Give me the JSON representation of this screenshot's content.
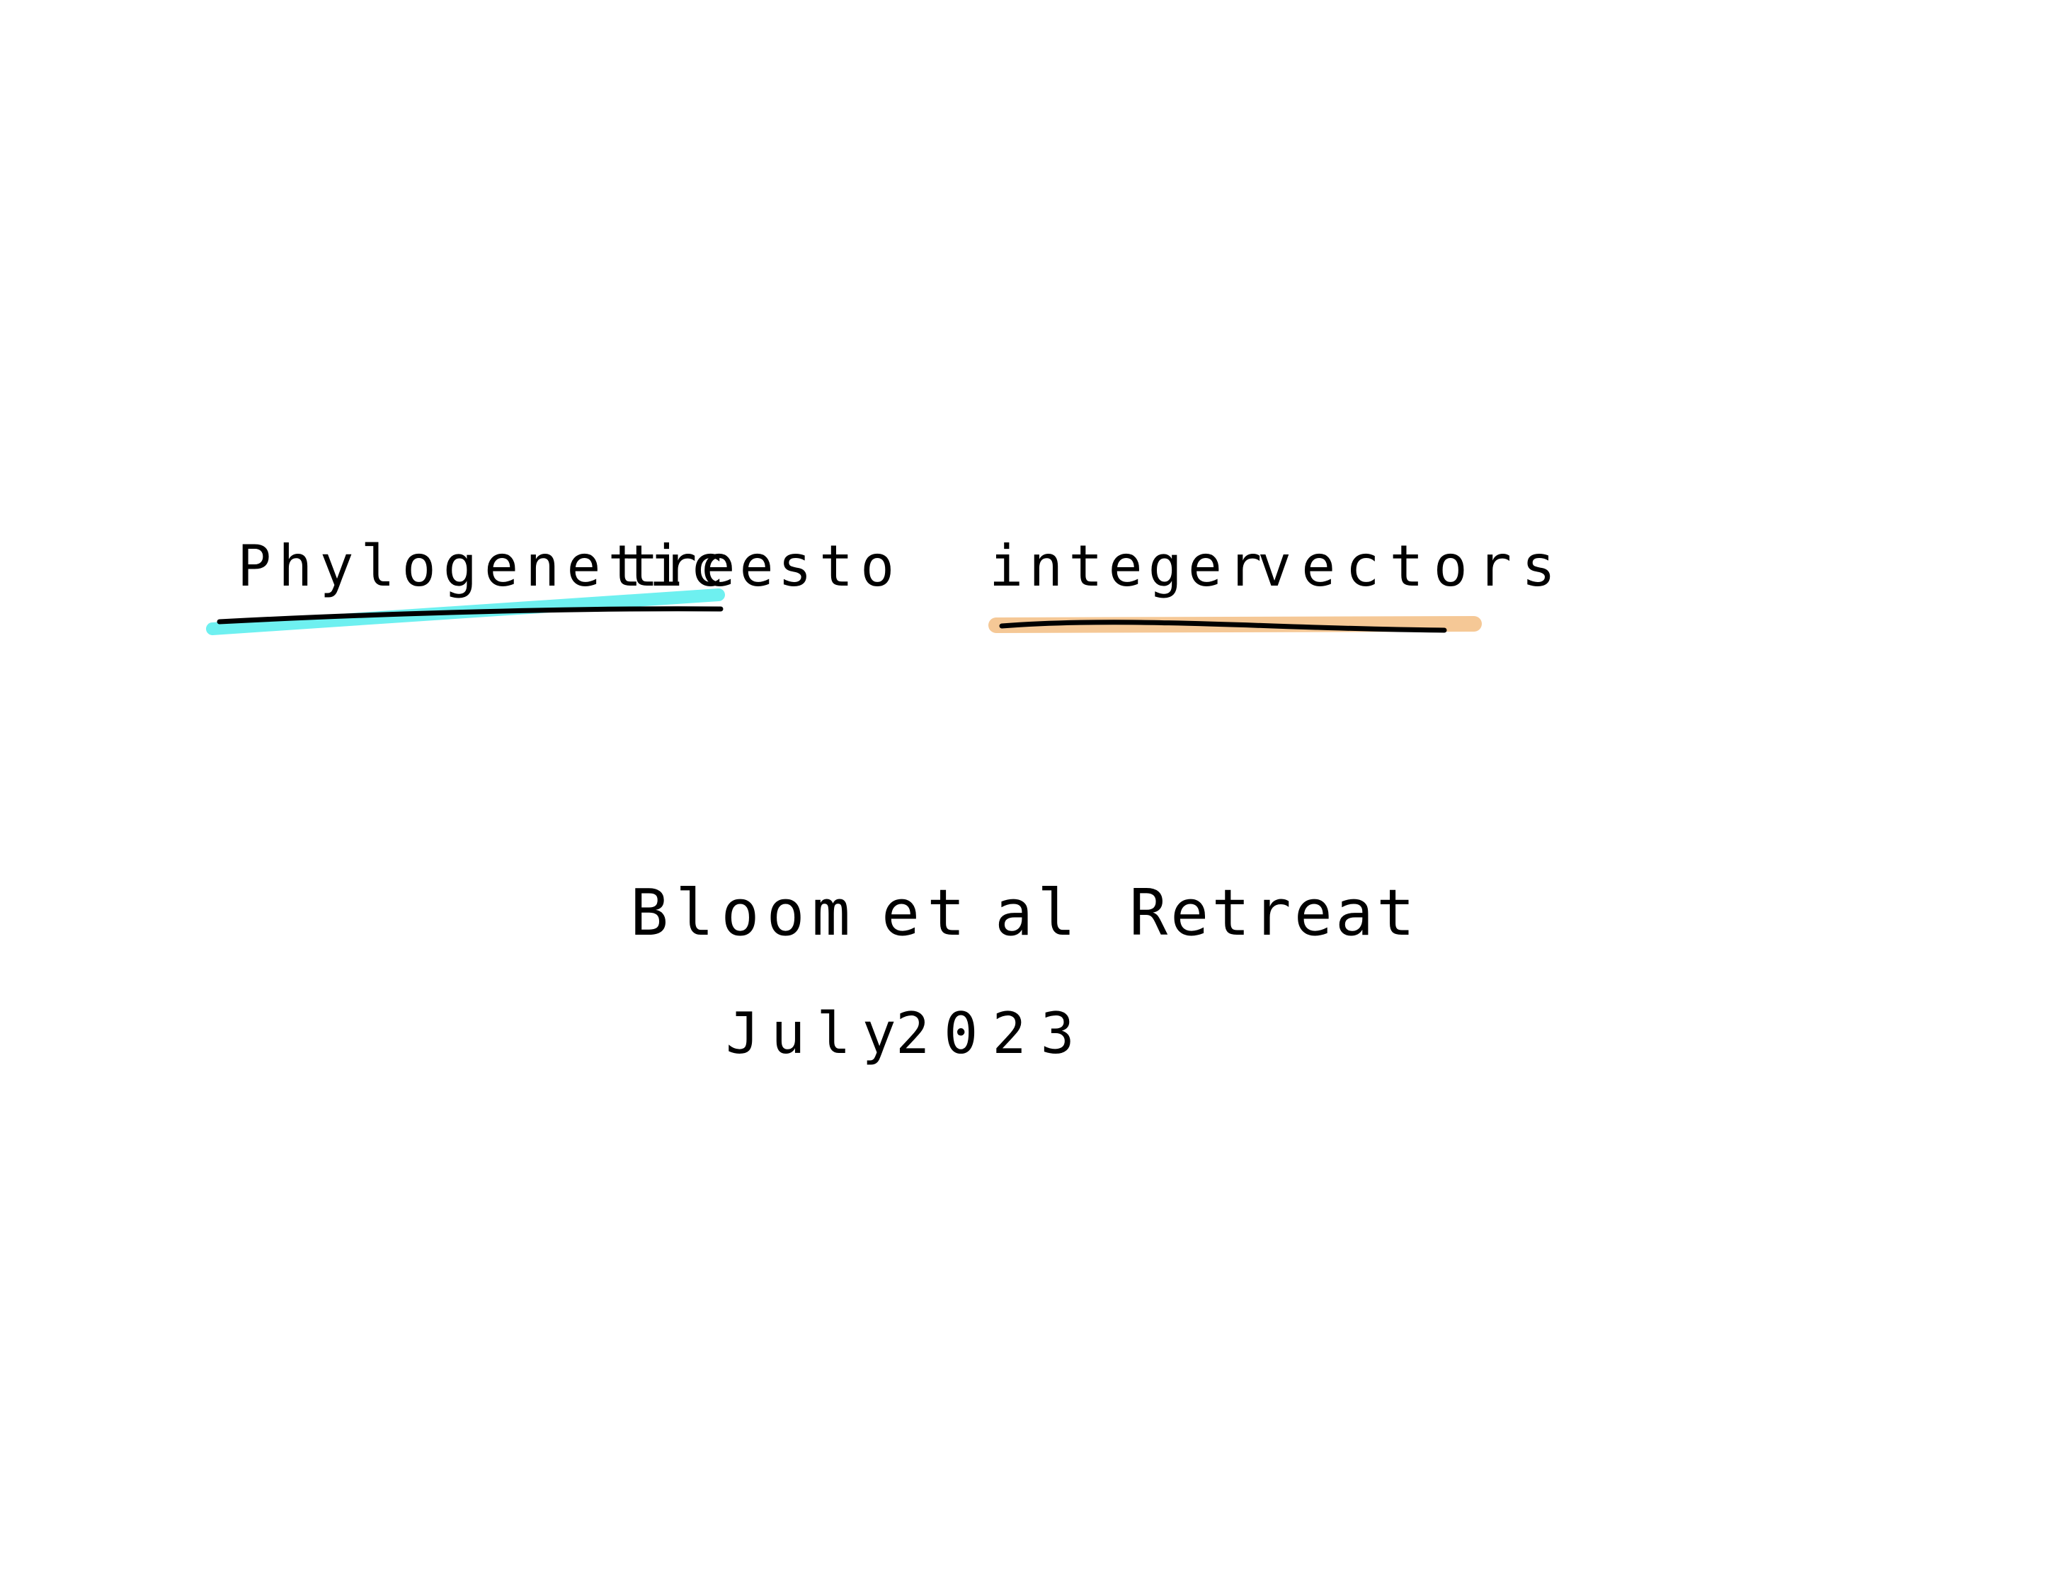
{
  "title": {
    "words": [
      "Phylogenetic",
      "trees",
      "to",
      "integer",
      "vectors"
    ]
  },
  "subtitle": {
    "words": [
      "Bloom",
      "et",
      "al",
      "Retreat"
    ]
  },
  "date": {
    "month": "July",
    "year": "2023"
  },
  "highlights": {
    "trees_color": "#6ef0f0",
    "vectors_color": "#f5c896",
    "ink_color": "#000000"
  }
}
